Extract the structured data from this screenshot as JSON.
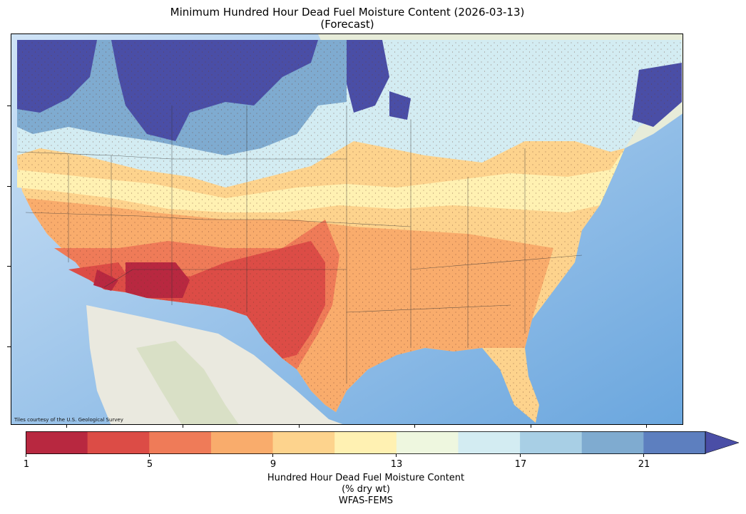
{
  "title": {
    "line1": "Minimum Hundred Hour Dead Fuel Moisture Content (2026-03-13)",
    "line2": "(Forecast)"
  },
  "map": {
    "credit": "Tiles courtesy of the U.S. Geological Survey",
    "region": "Contiguous United States"
  },
  "colorbar": {
    "tick_labels": [
      "1",
      "5",
      "9",
      "13",
      "17",
      "21"
    ],
    "title_line1": "Hundred Hour Dead Fuel Moisture Content",
    "title_line2": "(% dry wt)",
    "title_line3": "WFAS-FEMS",
    "colors": [
      "#b82840",
      "#dc4c46",
      "#ef7b58",
      "#f9ac6c",
      "#fdd38d",
      "#fff1b2",
      "#eef7df",
      "#d3ecf2",
      "#a8cfe5",
      "#7fabd0",
      "#5d7fbf",
      "#4a4ea6"
    ],
    "extend": "max"
  },
  "chart_data": {
    "type": "heatmap",
    "title": "Minimum Hundred Hour Dead Fuel Moisture Content (2026-03-13) (Forecast)",
    "colorbar_label": "Hundred Hour Dead Fuel Moisture Content (% dry wt)",
    "source": "WFAS-FEMS",
    "color_scale_range": [
      1,
      23
    ],
    "color_scale_ticks": [
      1,
      5,
      9,
      13,
      17,
      21
    ],
    "color_bin_edges": [
      1,
      3,
      5,
      7,
      9,
      11,
      13,
      15,
      17,
      19,
      21,
      23
    ],
    "extend": "max"
  }
}
